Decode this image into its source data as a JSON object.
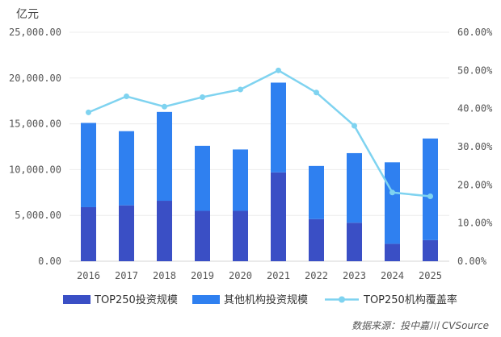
{
  "chart_data": {
    "type": "bar",
    "stacked": true,
    "unit_label": "亿元",
    "categories": [
      "2016",
      "2017",
      "2018",
      "2019",
      "2020",
      "2021",
      "2022",
      "2023",
      "2024",
      "2025"
    ],
    "series": [
      {
        "name": "TOP250投资规模",
        "axis": "left",
        "color": "#3a4fc5",
        "values": [
          5900,
          6100,
          6600,
          5500,
          5500,
          9700,
          4600,
          4200,
          1900,
          2300
        ]
      },
      {
        "name": "其他机构投资规模",
        "axis": "left",
        "color": "#2f80f0",
        "values": [
          9200,
          8100,
          9700,
          7100,
          6700,
          9800,
          5800,
          7600,
          8900,
          11100
        ]
      },
      {
        "name": "TOP250机构覆盖率",
        "axis": "right",
        "type": "line",
        "color": "#7fd3f0",
        "values": [
          39.0,
          43.2,
          40.5,
          43.0,
          45.0,
          50.0,
          44.2,
          35.5,
          18.0,
          17.0
        ]
      }
    ],
    "y_left": {
      "min": 0,
      "max": 25000,
      "ticks": [
        "0.00",
        "5,000.00",
        "10,000.00",
        "15,000.00",
        "20,000.00",
        "25,000.00"
      ]
    },
    "y_right": {
      "min": 0,
      "max": 60,
      "ticks": [
        "0.00%",
        "10.00%",
        "20.00%",
        "30.00%",
        "40.00%",
        "50.00%",
        "60.00%"
      ]
    },
    "grid": true,
    "legend_position": "bottom",
    "source": "数据来源：投中嘉川 CVSource"
  }
}
